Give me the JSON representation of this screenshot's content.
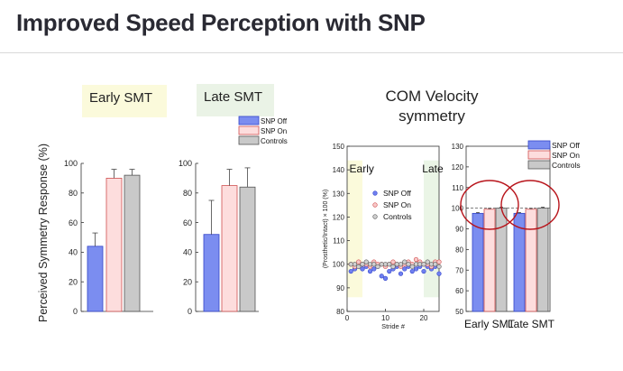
{
  "slide": {
    "title": "Improved Speed Perception with SNP"
  },
  "panels": {
    "early_tag": "Early SMT",
    "late_tag": "Late SMT",
    "com_title_line1": "COM Velocity",
    "com_title_line2": "symmetry"
  },
  "colors": {
    "snp_off": "#7b8df0",
    "snp_on": "#fddddd",
    "controls": "#c9c9c9",
    "early_shade": "#fbfadb",
    "late_shade": "#eaf5e6",
    "circle": "#b8141b"
  },
  "chart_data": [
    {
      "type": "bar",
      "panel": "Early SMT",
      "ylabel": "Perceived Symmetry Response (%)",
      "ylim": [
        0,
        100
      ],
      "yticks": [
        0,
        20,
        40,
        60,
        80,
        100
      ],
      "series": [
        {
          "name": "SNP Off",
          "values": [
            44
          ],
          "error": [
            9
          ]
        },
        {
          "name": "SNP On",
          "values": [
            90
          ],
          "error": [
            6
          ]
        },
        {
          "name": "Controls",
          "values": [
            92
          ],
          "error": [
            4
          ]
        }
      ]
    },
    {
      "type": "bar",
      "panel": "Late SMT",
      "ylim": [
        0,
        100
      ],
      "yticks": [
        0,
        20,
        40,
        60,
        80,
        100
      ],
      "legend": [
        "SNP Off",
        "SNP On",
        "Controls"
      ],
      "series": [
        {
          "name": "SNP Off",
          "values": [
            52
          ],
          "error": [
            23
          ]
        },
        {
          "name": "SNP On",
          "values": [
            85
          ],
          "error": [
            11
          ]
        },
        {
          "name": "Controls",
          "values": [
            84
          ],
          "error": [
            13
          ]
        }
      ]
    },
    {
      "type": "scatter",
      "xlabel": "Stride #",
      "ylabel": "(Prosthetic/Intact) × 100 (%)",
      "xlim": [
        0,
        24
      ],
      "ylim": [
        80,
        150
      ],
      "xticks": [
        0,
        10,
        20
      ],
      "yticks": [
        80,
        90,
        100,
        110,
        120,
        130,
        140,
        150
      ],
      "shade_labels": [
        "Early",
        "Late"
      ],
      "legend": [
        "SNP Off",
        "SNP On",
        "Controls"
      ],
      "series": [
        {
          "name": "SNP Off",
          "x": [
            1,
            2,
            3,
            4,
            5,
            6,
            7,
            8,
            9,
            10,
            11,
            12,
            13,
            14,
            15,
            16,
            17,
            18,
            19,
            20,
            21,
            22,
            23,
            24
          ],
          "y": [
            97,
            98,
            99,
            98,
            99,
            97,
            98,
            99,
            95,
            94,
            97,
            98,
            99,
            96,
            98,
            99,
            97,
            98,
            99,
            97,
            99,
            98,
            99,
            96
          ]
        },
        {
          "name": "SNP On",
          "x": [
            1,
            2,
            3,
            4,
            5,
            6,
            7,
            8,
            9,
            10,
            11,
            12,
            13,
            14,
            15,
            16,
            17,
            18,
            19,
            20,
            21,
            22,
            23,
            24
          ],
          "y": [
            100,
            99,
            101,
            100,
            100,
            99,
            101,
            100,
            100,
            99,
            100,
            101,
            100,
            99,
            100,
            101,
            100,
            102,
            101,
            100,
            100,
            99,
            101,
            101
          ]
        },
        {
          "name": "Controls",
          "x": [
            1,
            2,
            3,
            4,
            5,
            6,
            7,
            8,
            9,
            10,
            11,
            12,
            13,
            14,
            15,
            16,
            17,
            18,
            19,
            20,
            21,
            22,
            23,
            24
          ],
          "y": [
            100,
            100,
            99,
            100,
            101,
            100,
            100,
            99,
            100,
            100,
            100,
            99,
            100,
            100,
            101,
            100,
            99,
            100,
            100,
            100,
            101,
            100,
            100,
            99
          ]
        }
      ]
    },
    {
      "type": "bar",
      "categories": [
        "Early SMT",
        "Late SMT"
      ],
      "ylim": [
        50,
        130
      ],
      "yticks": [
        50,
        60,
        70,
        80,
        90,
        100,
        110,
        120,
        130
      ],
      "reference_line": 100,
      "legend": [
        "SNP Off",
        "SNP On",
        "Controls"
      ],
      "series": [
        {
          "name": "SNP Off",
          "values": [
            97.5,
            97.5
          ],
          "error": [
            0.4,
            0.4
          ]
        },
        {
          "name": "SNP On",
          "values": [
            99.5,
            99.5
          ],
          "error": [
            0.4,
            0.4
          ]
        },
        {
          "name": "Controls",
          "values": [
            100.0,
            100.0
          ],
          "error": [
            0.5,
            0.5
          ]
        }
      ]
    }
  ]
}
